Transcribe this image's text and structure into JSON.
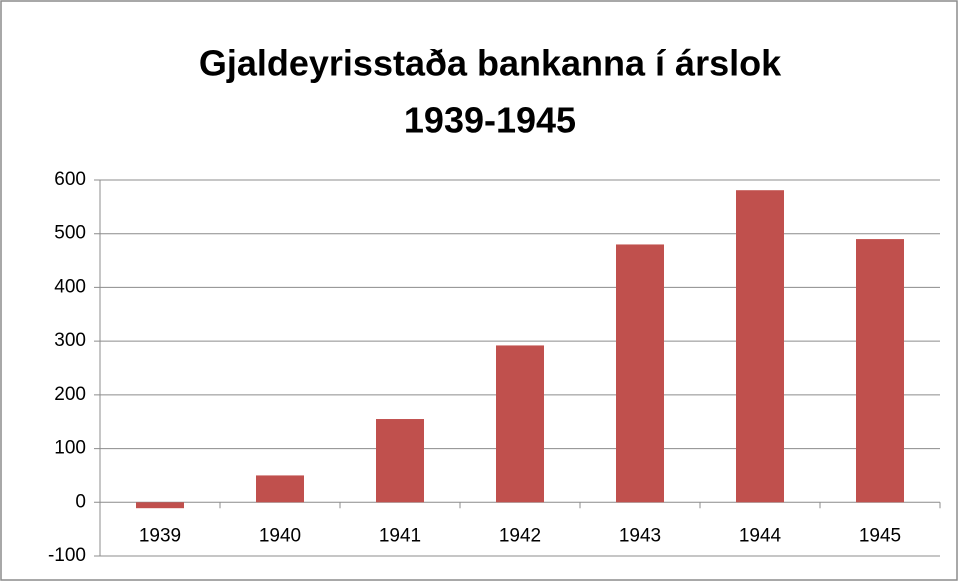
{
  "chart_data": {
    "type": "bar",
    "title": [
      "Gjaldeyrisstaða bankanna í árslok",
      "1939-1945"
    ],
    "categories": [
      "1939",
      "1940",
      "1941",
      "1942",
      "1943",
      "1944",
      "1945"
    ],
    "values": [
      -11,
      50,
      155,
      292,
      480,
      581,
      490
    ],
    "color": "#c0504d",
    "ylim": [
      -100,
      600
    ],
    "yticks": [
      -100,
      0,
      100,
      200,
      300,
      400,
      500,
      600
    ],
    "grid": true
  }
}
